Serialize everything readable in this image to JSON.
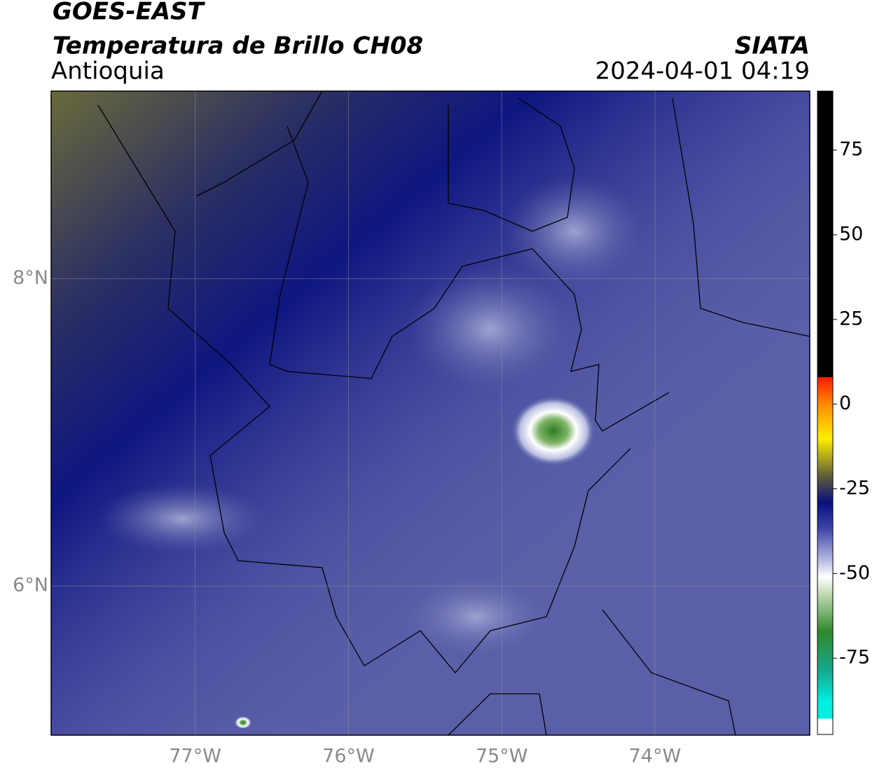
{
  "header": {
    "satellite": "GOES-EAST",
    "product": "Temperatura de Brillo CH08",
    "region": "Antioquia",
    "agency": "SIATA",
    "datetime": "2024-04-01 04:19"
  },
  "map": {
    "xlim": [
      -77.94,
      -72.99
    ],
    "ylim": [
      5.03,
      9.22
    ],
    "xticks": [
      {
        "value": -77,
        "label": "77°W"
      },
      {
        "value": -76,
        "label": "76°W"
      },
      {
        "value": -75,
        "label": "75°W"
      },
      {
        "value": -74,
        "label": "74°W"
      }
    ],
    "yticks": [
      {
        "value": 8,
        "label": "8°N"
      },
      {
        "value": 6,
        "label": "6°N"
      }
    ]
  },
  "colorbar": {
    "limits": [
      -97.5,
      92.4
    ],
    "ticks": [
      75,
      50,
      25,
      0,
      -25,
      -50,
      -75
    ]
  }
}
